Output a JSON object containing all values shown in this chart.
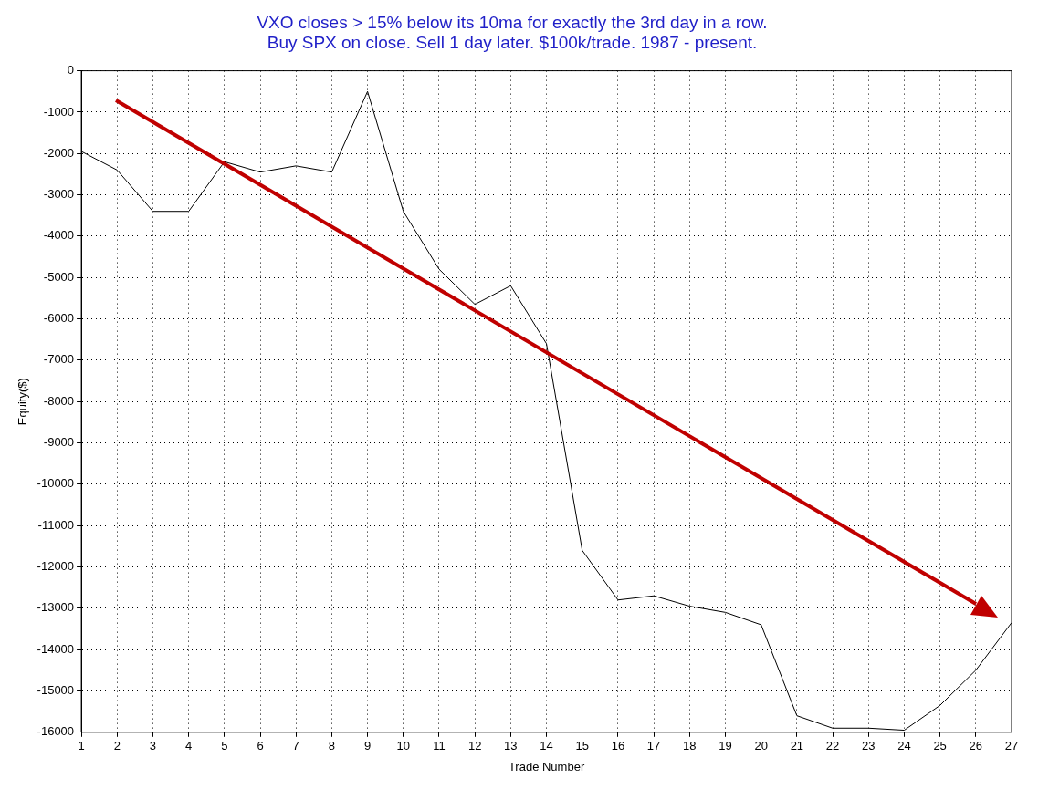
{
  "chart_data": {
    "type": "line",
    "title": "VXO closes > 15% below its 10ma for exactly the 3rd day in a row.",
    "subtitle": "Buy SPX on close. Sell 1 day later. $100k/trade. 1987 - present.",
    "xlabel": "Trade Number",
    "ylabel": "Equity($)",
    "x": [
      1,
      2,
      3,
      4,
      5,
      6,
      7,
      8,
      9,
      10,
      11,
      12,
      13,
      14,
      15,
      16,
      17,
      18,
      19,
      20,
      21,
      22,
      23,
      24,
      25,
      26,
      27
    ],
    "series": [
      {
        "color": "#000000",
        "values": [
          -1950,
          -2400,
          -3400,
          -3400,
          -2200,
          -2450,
          -2300,
          -2450,
          -500,
          -3400,
          -4800,
          -5650,
          -5200,
          -6600,
          -11600,
          -12800,
          -12700,
          -12950,
          -13100,
          -13400,
          -15600,
          -15900,
          -15900,
          -15950,
          -15350,
          -14500,
          -13350
        ]
      }
    ],
    "xlim": [
      1,
      27
    ],
    "xticks": [
      1,
      2,
      3,
      4,
      5,
      6,
      7,
      8,
      9,
      10,
      11,
      12,
      13,
      14,
      15,
      16,
      17,
      18,
      19,
      20,
      21,
      22,
      23,
      24,
      25,
      26,
      27
    ],
    "ylim": [
      -16000,
      0
    ],
    "yticks": [
      -16000,
      -15000,
      -14000,
      -13000,
      -12000,
      -11000,
      -10000,
      -9000,
      -8000,
      -7000,
      -6000,
      -5000,
      -4000,
      -3000,
      -2000,
      -1000,
      0
    ],
    "grid": true,
    "legend": false,
    "marker": "none",
    "line_style": "solid"
  }
}
